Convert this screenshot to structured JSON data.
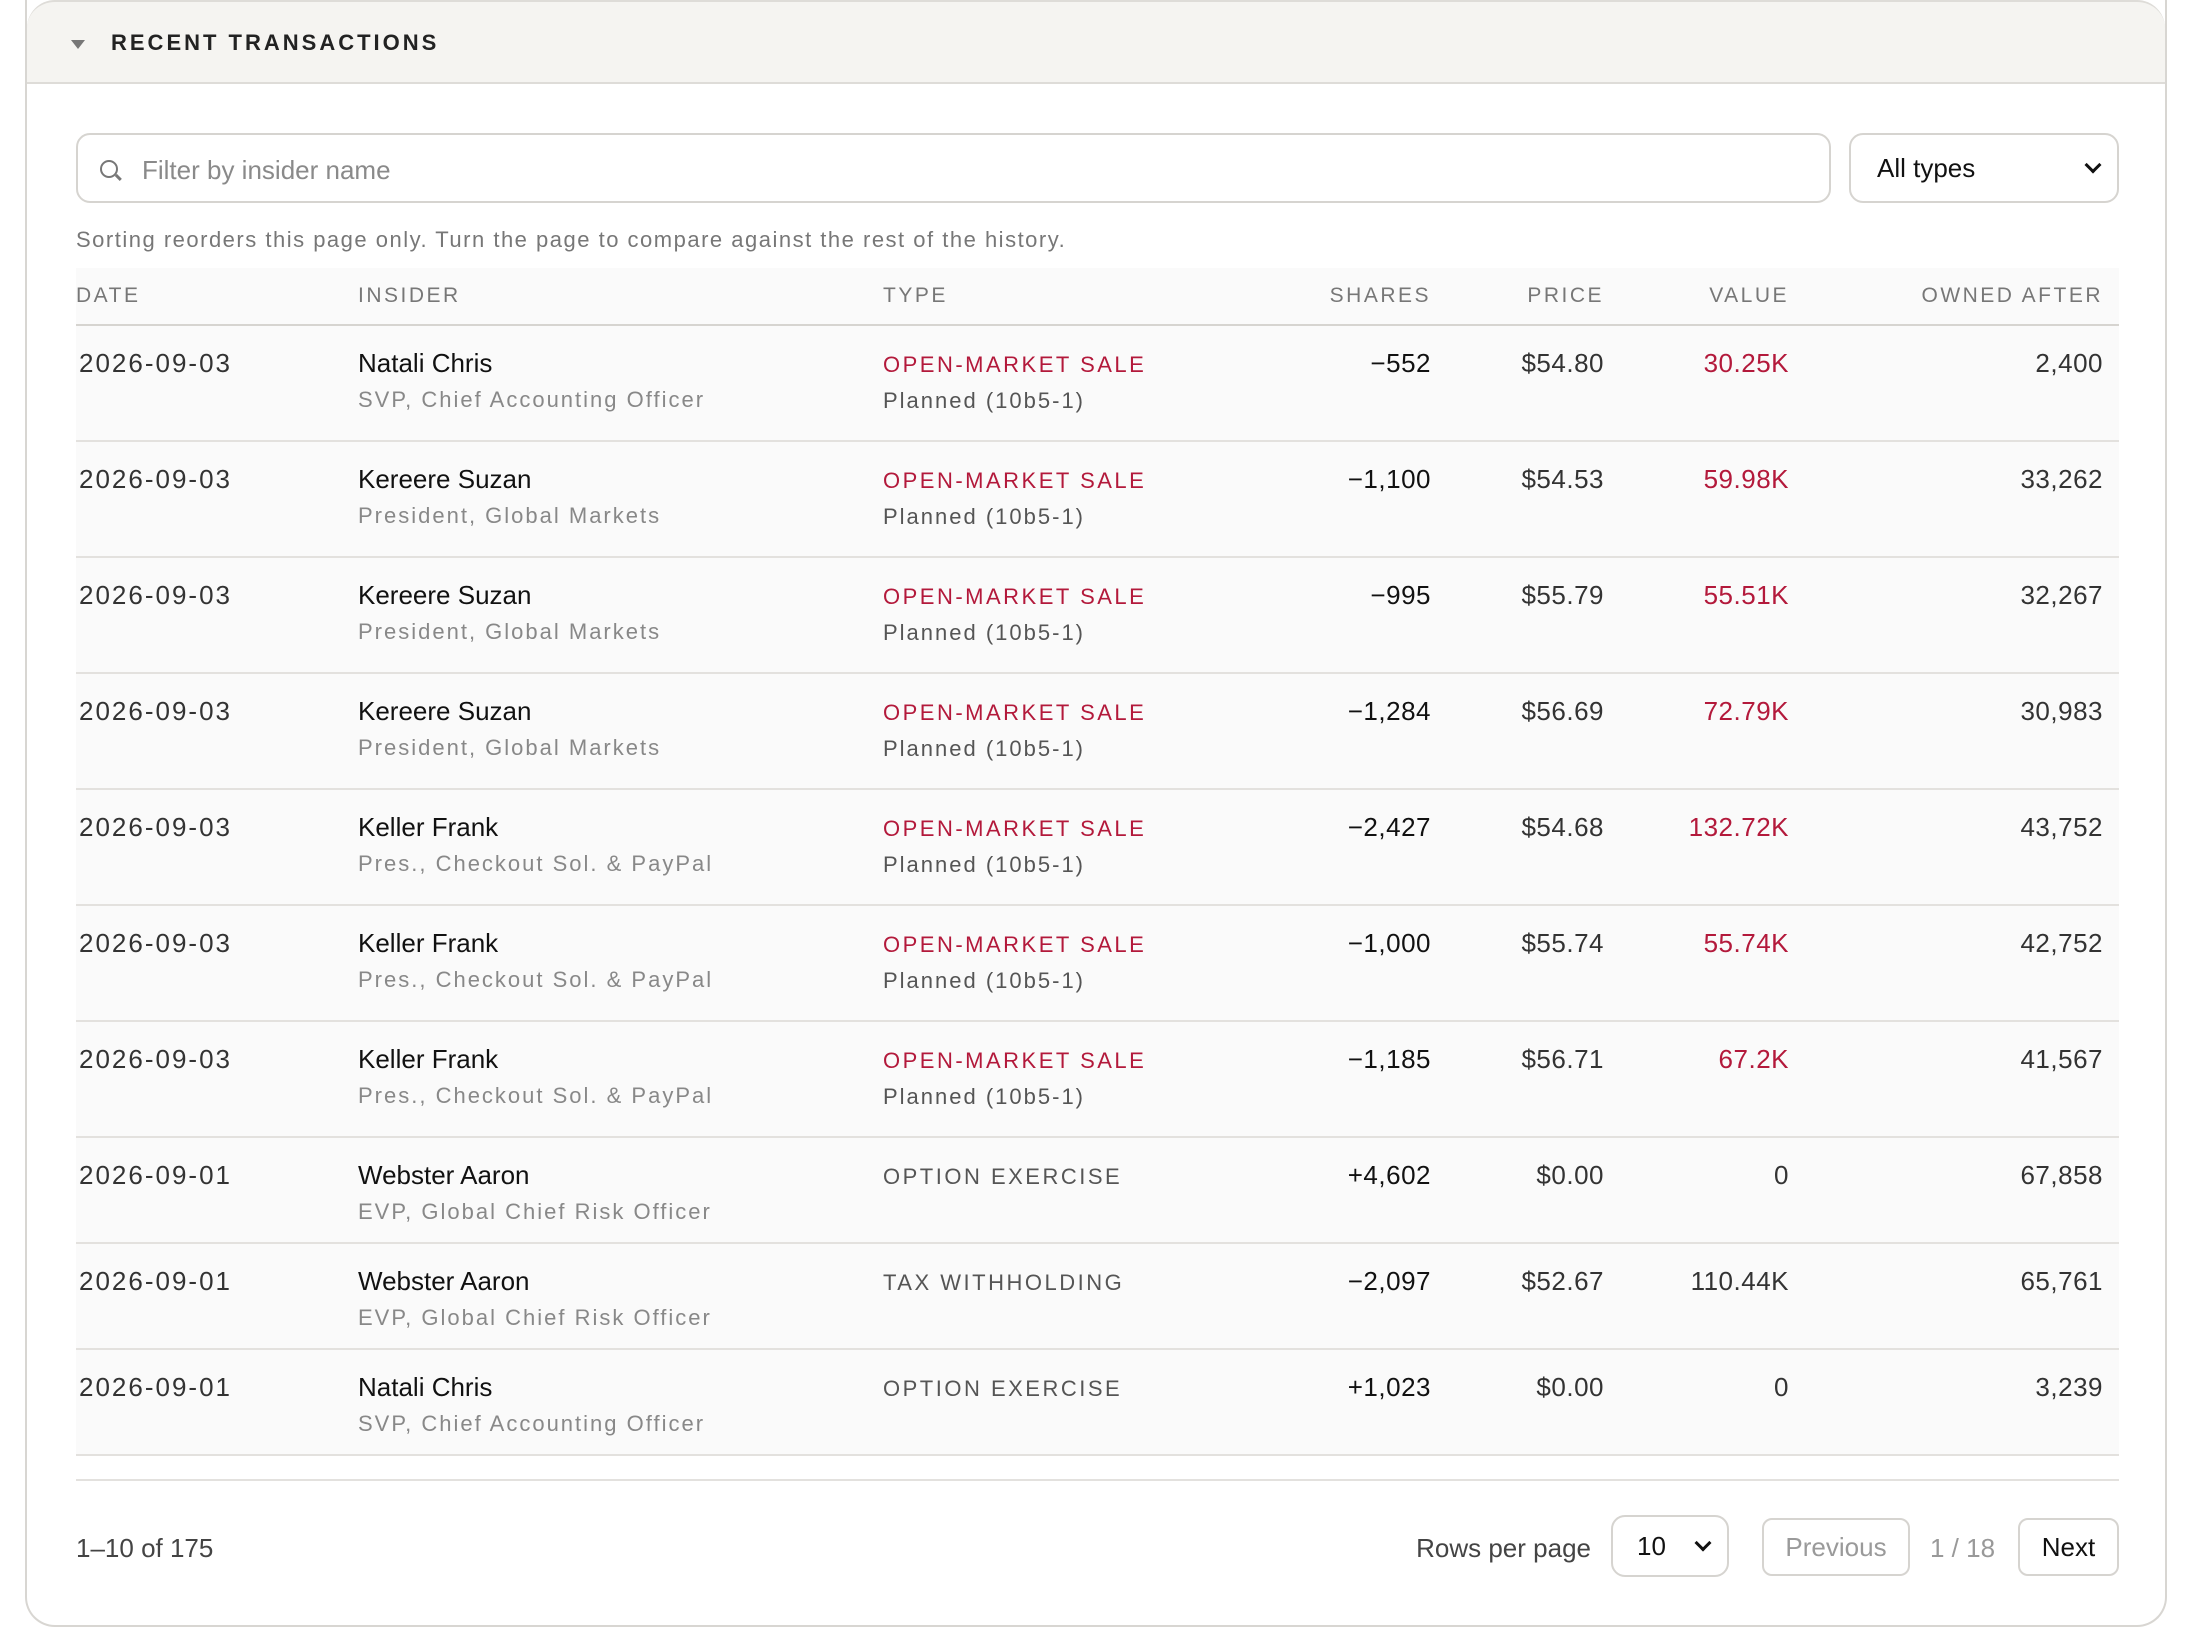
{
  "header": {
    "title": "RECENT TRANSACTIONS"
  },
  "search": {
    "placeholder": "Filter by insider name"
  },
  "filter": {
    "selected": "All types"
  },
  "note": "Sorting reorders this page only. Turn the page to compare against the rest of the history.",
  "table": {
    "columns": [
      "DATE",
      "INSIDER",
      "TYPE",
      "SHARES",
      "PRICE",
      "VALUE",
      "OWNED AFTER"
    ],
    "rows": [
      {
        "date": "2026-09-03",
        "insider": "Natali Chris",
        "role": "SVP, Chief Accounting Officer",
        "type": "OPEN-MARKET SALE",
        "plan": "Planned (10b5-1)",
        "shares": "−552",
        "price": "$54.80",
        "value": "30.25K",
        "owned": "2,400"
      },
      {
        "date": "2026-09-03",
        "insider": "Kereere Suzan",
        "role": "President, Global Markets",
        "type": "OPEN-MARKET SALE",
        "plan": "Planned (10b5-1)",
        "shares": "−1,100",
        "price": "$54.53",
        "value": "59.98K",
        "owned": "33,262"
      },
      {
        "date": "2026-09-03",
        "insider": "Kereere Suzan",
        "role": "President, Global Markets",
        "type": "OPEN-MARKET SALE",
        "plan": "Planned (10b5-1)",
        "shares": "−995",
        "price": "$55.79",
        "value": "55.51K",
        "owned": "32,267"
      },
      {
        "date": "2026-09-03",
        "insider": "Kereere Suzan",
        "role": "President, Global Markets",
        "type": "OPEN-MARKET SALE",
        "plan": "Planned (10b5-1)",
        "shares": "−1,284",
        "price": "$56.69",
        "value": "72.79K",
        "owned": "30,983"
      },
      {
        "date": "2026-09-03",
        "insider": "Keller Frank",
        "role": "Pres., Checkout Sol. & PayPal",
        "type": "OPEN-MARKET SALE",
        "plan": "Planned (10b5-1)",
        "shares": "−2,427",
        "price": "$54.68",
        "value": "132.72K",
        "owned": "43,752"
      },
      {
        "date": "2026-09-03",
        "insider": "Keller Frank",
        "role": "Pres., Checkout Sol. & PayPal",
        "type": "OPEN-MARKET SALE",
        "plan": "Planned (10b5-1)",
        "shares": "−1,000",
        "price": "$55.74",
        "value": "55.74K",
        "owned": "42,752"
      },
      {
        "date": "2026-09-03",
        "insider": "Keller Frank",
        "role": "Pres., Checkout Sol. & PayPal",
        "type": "OPEN-MARKET SALE",
        "plan": "Planned (10b5-1)",
        "shares": "−1,185",
        "price": "$56.71",
        "value": "67.2K",
        "owned": "41,567"
      },
      {
        "date": "2026-09-01",
        "insider": "Webster Aaron",
        "role": "EVP, Global Chief Risk Officer",
        "type": "OPTION EXERCISE",
        "shares": "+4,602",
        "price": "$0.00",
        "value": "0",
        "owned": "67,858"
      },
      {
        "date": "2026-09-01",
        "insider": "Webster Aaron",
        "role": "EVP, Global Chief Risk Officer",
        "type": "TAX WITHHOLDING",
        "shares": "−2,097",
        "price": "$52.67",
        "value": "110.44K",
        "owned": "65,761"
      },
      {
        "date": "2026-09-01",
        "insider": "Natali Chris",
        "role": "SVP, Chief Accounting Officer",
        "type": "OPTION EXERCISE",
        "shares": "+1,023",
        "price": "$0.00",
        "value": "0",
        "owned": "3,239"
      }
    ]
  },
  "footer": {
    "range": "1–10 of 175",
    "rows_label": "Rows per page",
    "rows_per_page": "10",
    "previous": "Previous",
    "page": "1 / 18",
    "next": "Next"
  }
}
